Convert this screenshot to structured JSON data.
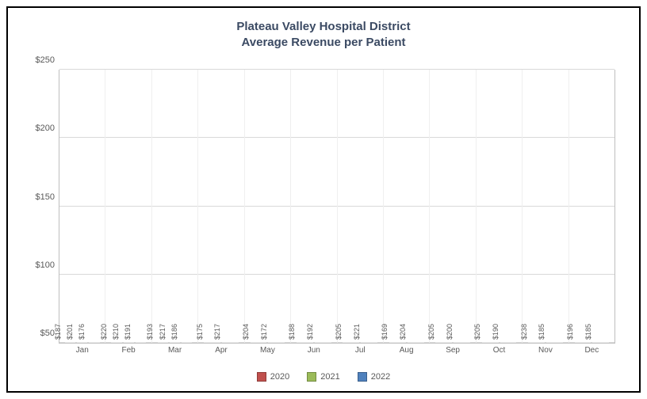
{
  "chart": {
    "type": "bar",
    "title_line1": "Plateau Valley Hospital District",
    "title_line2": "Average Revenue per Patient",
    "title_color": "#3b4a63",
    "title_fontsize": 15,
    "background_color": "#ffffff",
    "border_color": "#000000",
    "grid_color": "#d9d9d9",
    "axis_color": "#bfbfbf",
    "label_color": "#595959",
    "label_fontsize": 10,
    "datalabel_fontsize": 9,
    "datalabel_rotation": -90,
    "datalabel_prefix": "$",
    "ylim": [
      50,
      250
    ],
    "yticks": [
      50,
      100,
      150,
      200,
      250
    ],
    "ytick_prefix": "$",
    "categories": [
      "Jan",
      "Feb",
      "Mar",
      "Apr",
      "May",
      "Jun",
      "Jul",
      "Aug",
      "Sep",
      "Oct",
      "Nov",
      "Dec"
    ],
    "series": [
      {
        "name": "2020",
        "color": "#c0504d",
        "values": [
          187,
          220,
          193,
          175,
          204,
          188,
          205,
          169,
          205,
          205,
          238,
          196
        ]
      },
      {
        "name": "2021",
        "color": "#9bbb59",
        "values": [
          201,
          210,
          217,
          217,
          172,
          192,
          221,
          204,
          200,
          190,
          185,
          185
        ]
      },
      {
        "name": "2022",
        "color": "#4f81bd",
        "values": [
          176,
          191,
          186,
          null,
          null,
          null,
          null,
          null,
          null,
          null,
          null,
          null
        ]
      }
    ],
    "legend_position": "bottom",
    "bar_gap_pct": 12
  }
}
